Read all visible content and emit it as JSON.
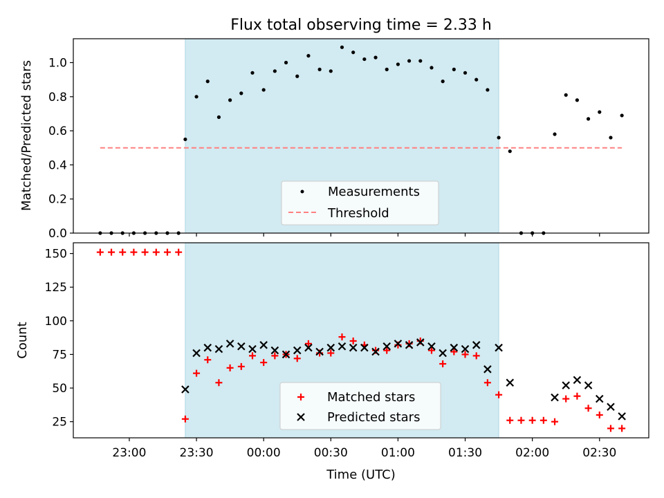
{
  "figure": {
    "title": "Flux total observing time = 2.33 h",
    "xlabel": "Time (UTC)",
    "x_ticks": [
      {
        "t": 1380,
        "label": "23:00"
      },
      {
        "t": 1410,
        "label": "23:30"
      },
      {
        "t": 1440,
        "label": "00:00"
      },
      {
        "t": 1470,
        "label": "00:30"
      },
      {
        "t": 1500,
        "label": "01:00"
      },
      {
        "t": 1530,
        "label": "01:30"
      },
      {
        "t": 1560,
        "label": "02:00"
      },
      {
        "t": 1590,
        "label": "02:30"
      }
    ],
    "x_range": [
      1355,
      1612
    ],
    "observing_window": [
      1405,
      1545
    ],
    "window_color": "#add8e6"
  },
  "chart_data": [
    {
      "type": "scatter",
      "panel": "top",
      "ylabel": "Matched/Predicted stars",
      "ylim": [
        0,
        1.14
      ],
      "y_ticks": [
        0.0,
        0.2,
        0.4,
        0.6,
        0.8,
        1.0
      ],
      "y_tick_labels": [
        "0.0",
        "0.2",
        "0.4",
        "0.6",
        "0.8",
        "1.0"
      ],
      "legend": {
        "placement": "lower center",
        "entries": [
          "Measurements",
          "Threshold"
        ]
      },
      "threshold": {
        "name": "Threshold",
        "y": 0.5,
        "x_start": 1367,
        "x_end": 1600,
        "color": "#ff8080"
      },
      "series": [
        {
          "name": "Measurements",
          "color": "#000000",
          "x": [
            1367,
            1372,
            1377,
            1382,
            1387,
            1392,
            1397,
            1402,
            1405,
            1410,
            1415,
            1420,
            1425,
            1430,
            1435,
            1440,
            1445,
            1450,
            1455,
            1460,
            1465,
            1470,
            1475,
            1480,
            1485,
            1490,
            1495,
            1500,
            1505,
            1510,
            1515,
            1520,
            1525,
            1530,
            1535,
            1540,
            1545,
            1550,
            1555,
            1560,
            1565,
            1570,
            1575,
            1580,
            1585,
            1590,
            1595,
            1600
          ],
          "y": [
            0,
            0,
            0,
            0,
            0,
            0,
            0,
            0,
            0.55,
            0.8,
            0.89,
            0.68,
            0.78,
            0.82,
            0.94,
            0.84,
            0.95,
            1.0,
            0.92,
            1.04,
            0.96,
            0.95,
            1.09,
            1.06,
            1.02,
            1.03,
            0.96,
            0.99,
            1.01,
            1.01,
            0.97,
            0.89,
            0.96,
            0.94,
            0.9,
            0.84,
            0.56,
            0.48,
            0,
            0,
            0,
            0.58,
            0.81,
            0.78,
            0.67,
            0.71,
            0.56,
            0.69
          ]
        }
      ]
    },
    {
      "type": "scatter",
      "panel": "bottom",
      "ylabel": "Count",
      "ylim": [
        13,
        158
      ],
      "y_ticks": [
        25,
        50,
        75,
        100,
        125,
        150
      ],
      "y_tick_labels": [
        "25",
        "50",
        "75",
        "100",
        "125",
        "150"
      ],
      "legend": {
        "placement": "lower center",
        "entries": [
          "Matched stars",
          "Predicted stars"
        ]
      },
      "series": [
        {
          "name": "Matched stars",
          "marker": "plus",
          "color": "#ff0000",
          "x": [
            1367,
            1372,
            1377,
            1382,
            1387,
            1392,
            1397,
            1402,
            1405,
            1410,
            1415,
            1420,
            1425,
            1430,
            1435,
            1440,
            1445,
            1450,
            1455,
            1460,
            1465,
            1470,
            1475,
            1480,
            1485,
            1490,
            1495,
            1500,
            1505,
            1510,
            1515,
            1520,
            1525,
            1530,
            1535,
            1540,
            1545,
            1550,
            1555,
            1560,
            1565,
            1570,
            1575,
            1580,
            1585,
            1590,
            1595,
            1600
          ],
          "y": [
            151,
            151,
            151,
            151,
            151,
            151,
            151,
            151,
            27,
            61,
            71,
            54,
            65,
            66,
            74,
            69,
            74,
            75,
            72,
            83,
            76,
            76,
            88,
            85,
            82,
            78,
            78,
            82,
            83,
            85,
            78,
            68,
            77,
            75,
            74,
            54,
            45,
            26,
            26,
            26,
            26,
            25,
            42,
            44,
            35,
            30,
            20,
            20
          ]
        },
        {
          "name": "Predicted stars",
          "marker": "x",
          "color": "#000000",
          "x": [
            1405,
            1410,
            1415,
            1420,
            1425,
            1430,
            1435,
            1440,
            1445,
            1450,
            1455,
            1460,
            1465,
            1470,
            1475,
            1480,
            1485,
            1490,
            1495,
            1500,
            1505,
            1510,
            1515,
            1520,
            1525,
            1530,
            1535,
            1540,
            1545,
            1550,
            1570,
            1575,
            1580,
            1585,
            1590,
            1595,
            1600
          ],
          "y": [
            49,
            76,
            80,
            79,
            83,
            81,
            79,
            82,
            78,
            75,
            78,
            80,
            77,
            80,
            81,
            80,
            80,
            77,
            81,
            83,
            82,
            84,
            81,
            76,
            80,
            79,
            82,
            64,
            80,
            54,
            43,
            52,
            56,
            52,
            42,
            36,
            29
          ]
        }
      ]
    }
  ]
}
